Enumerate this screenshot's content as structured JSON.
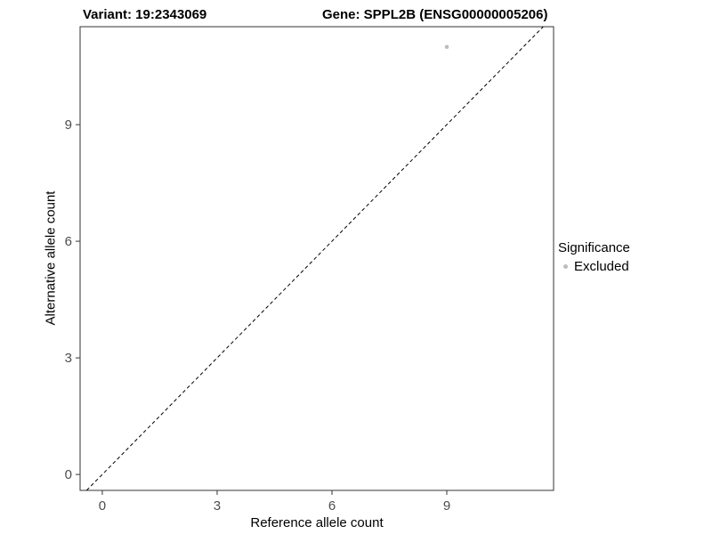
{
  "titles": {
    "variant": "Variant: 19:2343069",
    "gene": "Gene: SPPL2B (ENSG00000005206)"
  },
  "axes": {
    "x_label": "Reference allele count",
    "y_label": "Alternative allele count"
  },
  "legend": {
    "title": "Significance",
    "items": [
      {
        "label": "Excluded",
        "color": "#bdbdbd"
      }
    ]
  },
  "colors": {
    "panel_border": "#333333",
    "tick": "#333333",
    "tick_label": "#4d4d4d",
    "reference_line": "#000000",
    "background": "#ffffff"
  },
  "chart_data": {
    "type": "scatter",
    "title": "Variant: 19:2343069   Gene: SPPL2B (ENSG00000005206)",
    "xlabel": "Reference allele count",
    "ylabel": "Alternative allele count",
    "xlim": [
      -0.58,
      11.79
    ],
    "ylim": [
      -0.41,
      11.52
    ],
    "x_ticks": [
      0,
      3,
      6,
      9
    ],
    "y_ticks": [
      0,
      3,
      6,
      9
    ],
    "grid": false,
    "legend_position": "right",
    "reference_line": {
      "type": "identity",
      "style": "dashed",
      "color": "#000000"
    },
    "series": [
      {
        "name": "Excluded",
        "color": "#bdbdbd",
        "points": [
          {
            "x": 9,
            "y": 11
          }
        ]
      }
    ]
  }
}
